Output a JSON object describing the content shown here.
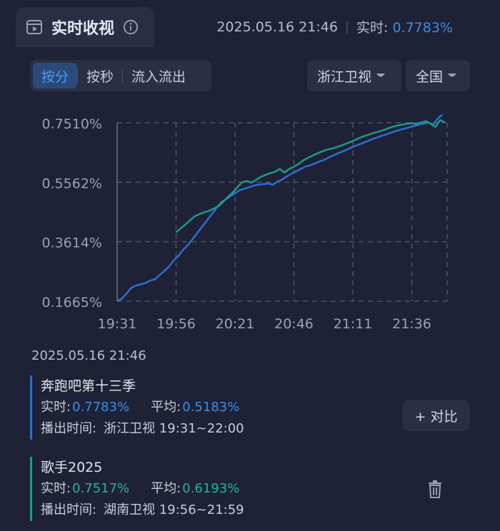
{
  "header": {
    "title": "实时收视",
    "datetime": "2025.05.16 21:46",
    "realtime_label": "实时:",
    "realtime_value": "0.7783%"
  },
  "tabs": [
    "按分",
    "按秒",
    "流入流出"
  ],
  "active_tab": 0,
  "filters": {
    "channel": "浙江卫视",
    "region": "全国"
  },
  "chart_data": {
    "type": "line",
    "y_ticks": [
      "0.7510%",
      "0.5562%",
      "0.3614%",
      "0.1665%"
    ],
    "x_ticks": [
      "19:31",
      "19:56",
      "20:21",
      "20:46",
      "21:11",
      "21:36"
    ],
    "ylim": [
      0.1665,
      0.751
    ],
    "grid": true,
    "series": [
      {
        "name": "奔跑吧第十三季",
        "color": "#2d6fd0",
        "x": [
          0,
          2,
          4,
          6,
          8,
          10,
          12,
          14,
          16,
          18,
          20,
          22,
          24,
          26,
          28,
          30,
          32,
          34,
          36,
          38,
          40,
          42,
          44,
          46,
          48,
          50,
          52,
          54,
          56,
          58,
          60,
          62,
          64,
          66,
          68,
          70,
          72,
          74,
          76,
          78,
          80,
          82,
          84,
          86,
          88,
          90,
          92,
          94,
          96,
          98,
          100,
          102,
          104,
          106,
          108,
          110,
          112,
          114,
          116,
          118,
          120,
          122,
          124,
          126,
          128,
          130,
          132,
          134,
          136,
          138
        ],
        "y": [
          0.167,
          0.175,
          0.192,
          0.21,
          0.218,
          0.222,
          0.226,
          0.234,
          0.238,
          0.252,
          0.265,
          0.28,
          0.3,
          0.315,
          0.335,
          0.35,
          0.37,
          0.39,
          0.41,
          0.43,
          0.45,
          0.47,
          0.49,
          0.5,
          0.51,
          0.52,
          0.53,
          0.535,
          0.54,
          0.545,
          0.548,
          0.55,
          0.552,
          0.548,
          0.558,
          0.565,
          0.575,
          0.585,
          0.592,
          0.6,
          0.608,
          0.612,
          0.618,
          0.625,
          0.63,
          0.638,
          0.645,
          0.652,
          0.658,
          0.665,
          0.672,
          0.678,
          0.684,
          0.69,
          0.697,
          0.702,
          0.708,
          0.712,
          0.718,
          0.723,
          0.728,
          0.732,
          0.736,
          0.74,
          0.745,
          0.748,
          0.752,
          0.745,
          0.765,
          0.778
        ]
      },
      {
        "name": "歌手2025",
        "color": "#1f9a88",
        "x": [
          25,
          27,
          29,
          31,
          33,
          35,
          37,
          39,
          41,
          43,
          45,
          47,
          49,
          51,
          53,
          55,
          57,
          59,
          61,
          63,
          65,
          67,
          69,
          71,
          73,
          75,
          77,
          79,
          81,
          83,
          85,
          87,
          89,
          91,
          93,
          95,
          97,
          99,
          101,
          103,
          105,
          107,
          109,
          111,
          113,
          115,
          117,
          119,
          121,
          123,
          125,
          127,
          129,
          131,
          133,
          135,
          137,
          139
        ],
        "y": [
          0.392,
          0.405,
          0.418,
          0.432,
          0.445,
          0.452,
          0.458,
          0.462,
          0.47,
          0.478,
          0.492,
          0.508,
          0.522,
          0.54,
          0.556,
          0.56,
          0.555,
          0.564,
          0.574,
          0.58,
          0.586,
          0.59,
          0.6,
          0.588,
          0.6,
          0.607,
          0.616,
          0.628,
          0.636,
          0.644,
          0.651,
          0.657,
          0.663,
          0.666,
          0.671,
          0.676,
          0.682,
          0.688,
          0.695,
          0.702,
          0.708,
          0.713,
          0.718,
          0.722,
          0.727,
          0.733,
          0.738,
          0.742,
          0.745,
          0.748,
          0.75,
          0.746,
          0.752,
          0.756,
          0.748,
          0.738,
          0.76,
          0.752
        ]
      }
    ]
  },
  "snapshot": "2025.05.16 21:46",
  "programs": [
    {
      "name": "奔跑吧第十三季",
      "realtime_label": "实时:",
      "realtime": "0.7783%",
      "avg_label": "平均:",
      "avg": "0.5183%",
      "airing_label": "播出时间:",
      "airing": "浙江卫视 19:31~22:00"
    },
    {
      "name": "歌手2025",
      "realtime_label": "实时:",
      "realtime": "0.7517%",
      "avg_label": "平均:",
      "avg": "0.6193%",
      "airing_label": "播出时间:",
      "airing": "湖南卫视 19:56~21:59"
    }
  ],
  "compare_label": "+ 对比",
  "icons": [
    "tv-icon",
    "info-icon",
    "caret-down-icon",
    "trash-icon"
  ]
}
